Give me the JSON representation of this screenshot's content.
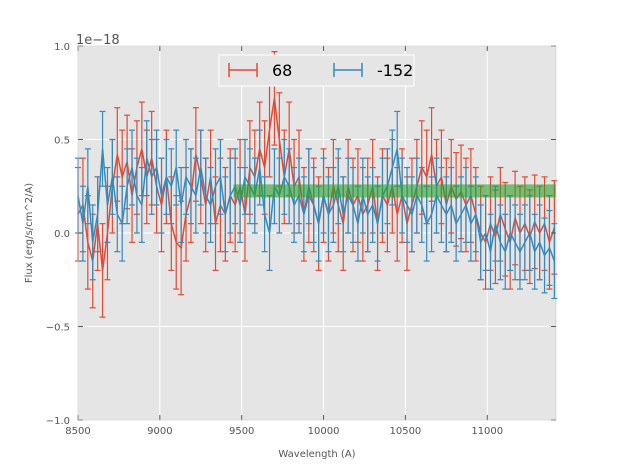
{
  "chart_data": {
    "type": "line",
    "subtype": "errorbar",
    "title": "",
    "xlabel": "Wavelength (A)",
    "ylabel": "Flux (erg/s/cm^2/A)",
    "y_offset_label": "1e−18",
    "xlim": [
      8500,
      11420
    ],
    "ylim": [
      -1.0,
      1.0
    ],
    "xticks": [
      8500,
      9000,
      9500,
      10000,
      10500,
      11000
    ],
    "xtick_labels": [
      "8500",
      "9000",
      "9500",
      "10000",
      "10500",
      "11000"
    ],
    "yticks": [
      -1.0,
      -0.5,
      0.0,
      0.5,
      1.0
    ],
    "ytick_labels": [
      "−1.0",
      "−0.5",
      "0.0",
      "0.5",
      "1.0"
    ],
    "grid": true,
    "legend_placement": "upper-center",
    "x_start": 8500,
    "x_step": 30,
    "series": [
      {
        "name": "68",
        "color": "#E24A33",
        "err": 0.25,
        "values": [
          0.1,
          0.15,
          -0.05,
          -0.15,
          0.05,
          -0.2,
          0.0,
          0.25,
          0.42,
          0.3,
          0.38,
          0.2,
          0.35,
          0.45,
          0.3,
          0.4,
          0.25,
          0.15,
          0.3,
          0.05,
          -0.05,
          -0.08,
          0.1,
          0.2,
          0.42,
          0.3,
          0.15,
          0.3,
          0.05,
          0.15,
          0.1,
          0.2,
          0.15,
          0.25,
          0.1,
          0.35,
          0.3,
          0.45,
          0.35,
          0.55,
          0.72,
          0.5,
          0.3,
          0.45,
          0.25,
          0.3,
          0.1,
          0.2,
          0.15,
          0.05,
          0.2,
          0.1,
          0.25,
          0.15,
          0.05,
          0.25,
          0.15,
          0.2,
          0.1,
          0.15,
          0.25,
          0.05,
          0.2,
          0.15,
          0.25,
          0.1,
          0.2,
          0.05,
          0.15,
          0.25,
          0.35,
          0.3,
          0.42,
          0.25,
          0.3,
          0.15,
          0.25,
          0.18,
          0.22,
          0.15,
          0.2,
          0.1,
          0.0,
          -0.05,
          0.05,
          -0.02,
          0.1,
          0.02,
          -0.05,
          0.08,
          0.0,
          0.05,
          -0.02,
          0.06,
          0.0,
          0.05,
          -0.05,
          0.03
        ]
      },
      {
        "name": "-152",
        "color": "#348ABD",
        "err": 0.2,
        "values": [
          0.2,
          0.05,
          0.25,
          -0.05,
          0.1,
          0.45,
          0.15,
          0.3,
          0.1,
          0.05,
          0.25,
          0.35,
          0.2,
          0.15,
          0.4,
          0.3,
          0.35,
          0.2,
          0.3,
          0.25,
          0.35,
          0.15,
          0.3,
          0.25,
          0.2,
          0.35,
          0.2,
          0.15,
          0.25,
          0.3,
          0.1,
          0.2,
          0.25,
          0.15,
          0.3,
          0.25,
          0.2,
          0.35,
          0.1,
          0.0,
          0.25,
          0.2,
          0.3,
          0.25,
          0.15,
          0.2,
          0.1,
          0.25,
          0.15,
          0.05,
          0.2,
          0.1,
          0.15,
          0.25,
          0.1,
          0.2,
          0.15,
          0.05,
          0.2,
          0.1,
          0.15,
          0.05,
          0.2,
          0.25,
          0.35,
          0.45,
          0.2,
          0.15,
          0.1,
          0.2,
          0.15,
          0.05,
          0.1,
          0.2,
          0.15,
          0.1,
          0.15,
          0.05,
          0.1,
          0.15,
          0.05,
          0.1,
          -0.05,
          0.0,
          -0.1,
          0.05,
          -0.05,
          -0.1,
          0.0,
          -0.05,
          -0.1,
          -0.05,
          0.0,
          -0.1,
          -0.05,
          -0.12,
          -0.08,
          -0.15
        ]
      }
    ],
    "band": {
      "x_range": [
        9450,
        11420
      ],
      "y_range": [
        0.19,
        0.26
      ],
      "color": "#2ca02c",
      "alpha": 0.6
    }
  }
}
